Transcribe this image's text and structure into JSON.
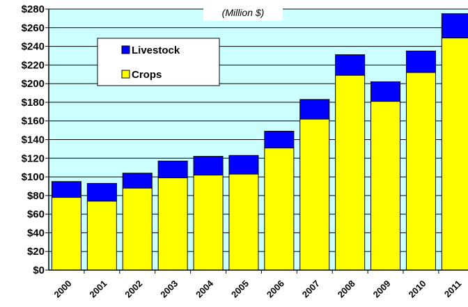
{
  "chart_data": {
    "type": "bar",
    "stacked": true,
    "subtitle": "(Million $)",
    "categories": [
      "2000",
      "2001",
      "2002",
      "2003",
      "2004",
      "2005",
      "2006",
      "2007",
      "2008",
      "2009",
      "2010",
      "2011"
    ],
    "series": [
      {
        "name": "Crops",
        "color": "#ffff00",
        "values": [
          78,
          74,
          88,
          99,
          102,
          103,
          131,
          162,
          209,
          181,
          212,
          249
        ]
      },
      {
        "name": "Livestock",
        "color": "#0000ff",
        "values": [
          17,
          19,
          16,
          18,
          20,
          20,
          18,
          21,
          22,
          21,
          23,
          26
        ]
      }
    ],
    "y_ticks": [
      "$0",
      "$20",
      "$40",
      "$60",
      "$80",
      "$100",
      "$120",
      "$140",
      "$160",
      "$180",
      "$200",
      "$220",
      "$240",
      "$260",
      "$280"
    ],
    "ylim": [
      0,
      280
    ],
    "y_step": 20,
    "grid": true,
    "legend_position": "top-left",
    "plot_background": "#ccffff"
  }
}
